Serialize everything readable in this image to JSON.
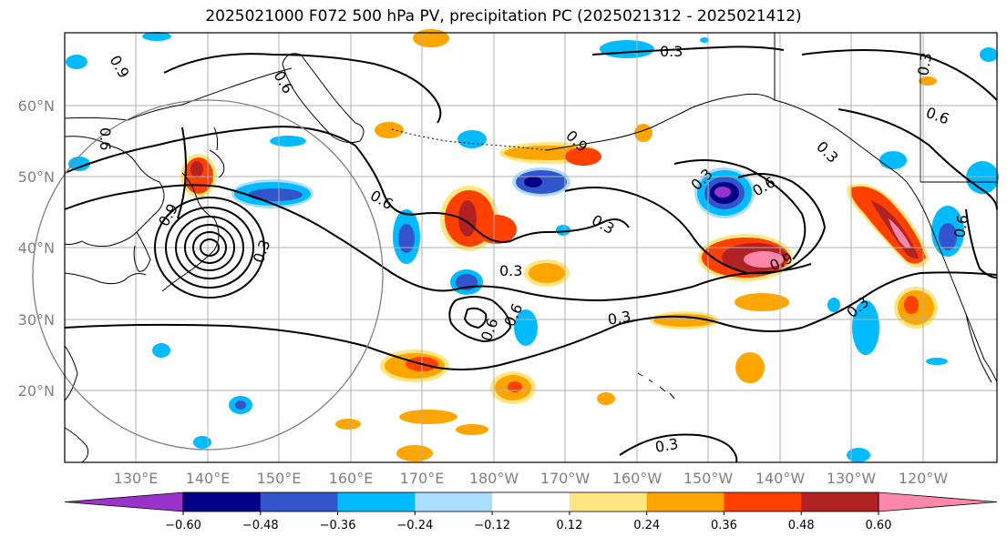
{
  "title": "2025021000 F072 500 hPa PV, precipitation PC (2025021312 - 2025021412)",
  "lat_labels": [
    "60°N",
    "50°N",
    "40°N",
    "30°N",
    "20°N"
  ],
  "lon_labels": [
    "130°E",
    "140°E",
    "150°E",
    "160°E",
    "170°E",
    "180°W",
    "170°W",
    "160°W",
    "150°W",
    "140°W",
    "130°W",
    "120°W"
  ],
  "colorbar": {
    "ticks": [
      "−0.60",
      "−0.48",
      "−0.36",
      "−0.24",
      "−0.12",
      "0.12",
      "0.24",
      "0.36",
      "0.48",
      "0.60"
    ],
    "colors": [
      "#9933cc",
      "#000088",
      "#3355cc",
      "#00bbff",
      "#aaddff",
      "#ffffff",
      "#ffe680",
      "#ffa500",
      "#ff4000",
      "#b22222",
      "#ff88aa"
    ]
  },
  "contour_labels": [
    "0.9",
    "0.6",
    "0.3",
    "0.6",
    "0.3",
    "0.6",
    "0.9",
    "0.3",
    "0.6",
    "0.3",
    "0.6",
    "0.9",
    "0.3",
    "0.3",
    "0.3",
    "0.9",
    "0.6",
    "0.3",
    "0.6",
    "0.6",
    "0.3",
    "0.3"
  ],
  "colors": {
    "grid": "#b0b0b0",
    "coast": "#000000",
    "contour": "#000000",
    "circle": "#808080"
  }
}
